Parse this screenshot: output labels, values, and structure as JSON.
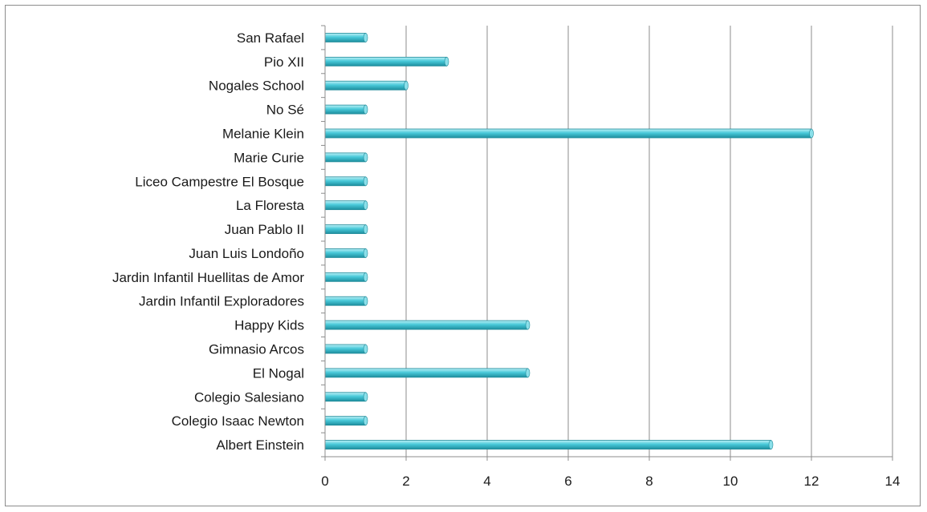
{
  "chart_data": {
    "type": "bar",
    "orientation": "horizontal",
    "categories": [
      "Albert Einstein",
      "Colegio Isaac Newton",
      "Colegio Salesiano",
      "El Nogal",
      "Gimnasio Arcos",
      "Happy Kids",
      "Jardin Infantil Exploradores",
      "Jardin Infantil Huellitas de Amor",
      "Juan Luis Londoño",
      "Juan Pablo II",
      "La Floresta",
      "Liceo Campestre El Bosque",
      "Marie Curie",
      "Melanie Klein",
      "No Sé",
      "Nogales School",
      "Pio XII",
      "San Rafael"
    ],
    "values": [
      11,
      1,
      1,
      5,
      1,
      5,
      1,
      1,
      1,
      1,
      1,
      1,
      1,
      12,
      1,
      2,
      3,
      1
    ],
    "xlim": [
      0,
      14
    ],
    "xticks": [
      "0",
      "2",
      "4",
      "6",
      "8",
      "10",
      "12",
      "14"
    ],
    "title": "",
    "xlabel": "",
    "ylabel": "",
    "grid": "vertical",
    "legend": "none",
    "bar_color": "#3fc3d4",
    "bar_edge_color": "#1f8a99",
    "grid_color": "#8c8c8c"
  }
}
